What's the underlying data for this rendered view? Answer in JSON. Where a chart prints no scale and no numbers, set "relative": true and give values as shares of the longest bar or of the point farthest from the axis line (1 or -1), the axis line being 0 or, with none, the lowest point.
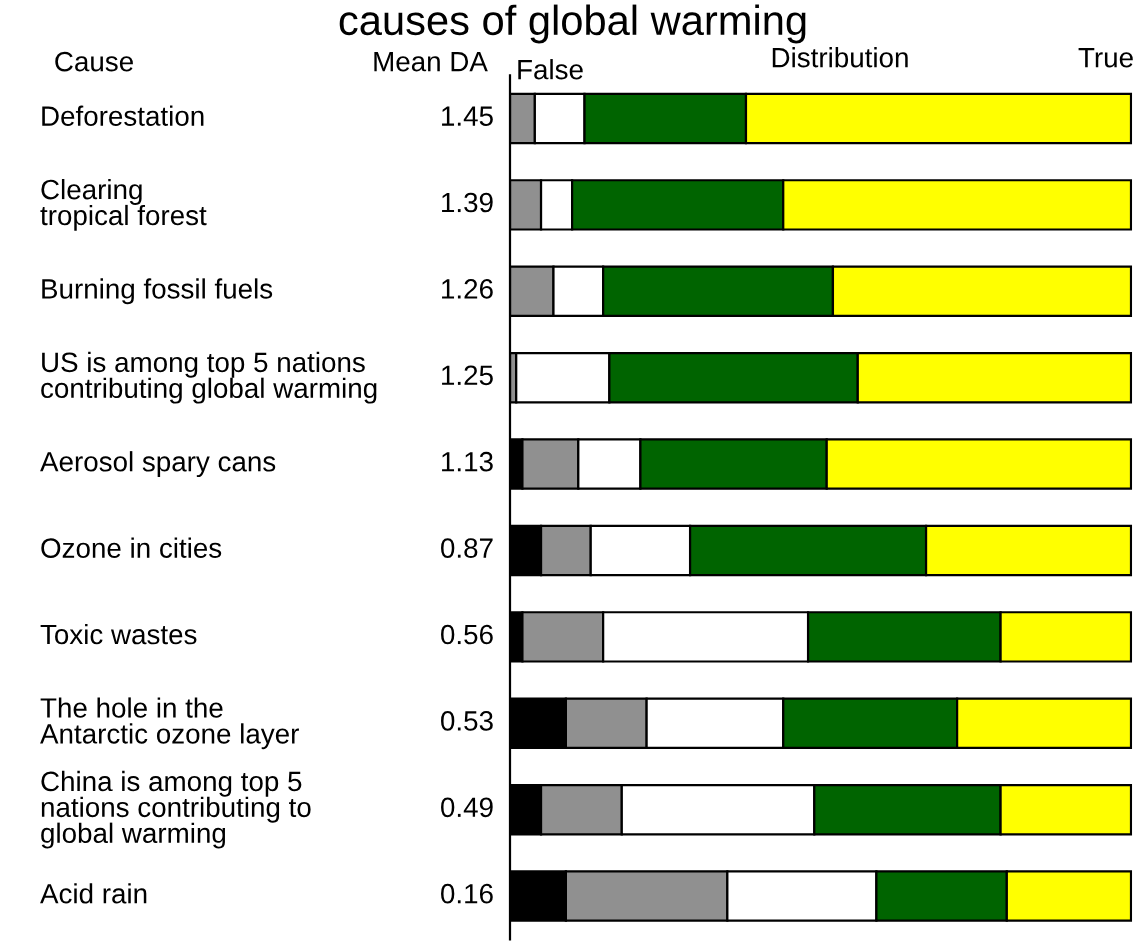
{
  "chart_data": {
    "type": "bar",
    "orientation": "horizontal",
    "stacked": true,
    "relative": true,
    "tick_labels": "y",
    "title": "causes of global warming",
    "categories": [
      "Deforestation",
      "Clearing\ntropical forest",
      "Burning fossil fuels",
      "US is among top 5 nations\ncontributing global warming",
      "Aerosol spary cans",
      "Ozone in cities",
      "Toxic wastes",
      "The hole in the\nAntarctic ozone layer",
      "China is among top 5\nnations contributing to\nglobal warming",
      "Acid rain"
    ],
    "series": [
      {
        "color": "#000000",
        "values": [
          0,
          0,
          0,
          0,
          0.02,
          0.05,
          0.02,
          0.09,
          0.05,
          0.09
        ]
      },
      {
        "color": "#909090",
        "values": [
          0.04,
          0.05,
          0.07,
          0.01,
          0.09,
          0.08,
          0.13,
          0.13,
          0.13,
          0.26
        ]
      },
      {
        "color": "#ffffff",
        "values": [
          0.08,
          0.05,
          0.08,
          0.15,
          0.1,
          0.16,
          0.33,
          0.22,
          0.31,
          0.24
        ]
      },
      {
        "color": "#006400",
        "values": [
          0.26,
          0.34,
          0.37,
          0.4,
          0.3,
          0.38,
          0.31,
          0.28,
          0.3,
          0.21
        ]
      },
      {
        "color": "#ffff00",
        "values": [
          0.62,
          0.56,
          0.48,
          0.44,
          0.49,
          0.33,
          0.21,
          0.28,
          0.21,
          0.2
        ]
      }
    ],
    "annotations": [
      "Cause",
      "Mean DA",
      "False",
      "Distribution",
      "True",
      "1.45",
      "1.39",
      "1.26",
      "1.25",
      "1.13",
      "0.87",
      "0.56",
      "0.53",
      "0.49",
      "0.16"
    ]
  }
}
